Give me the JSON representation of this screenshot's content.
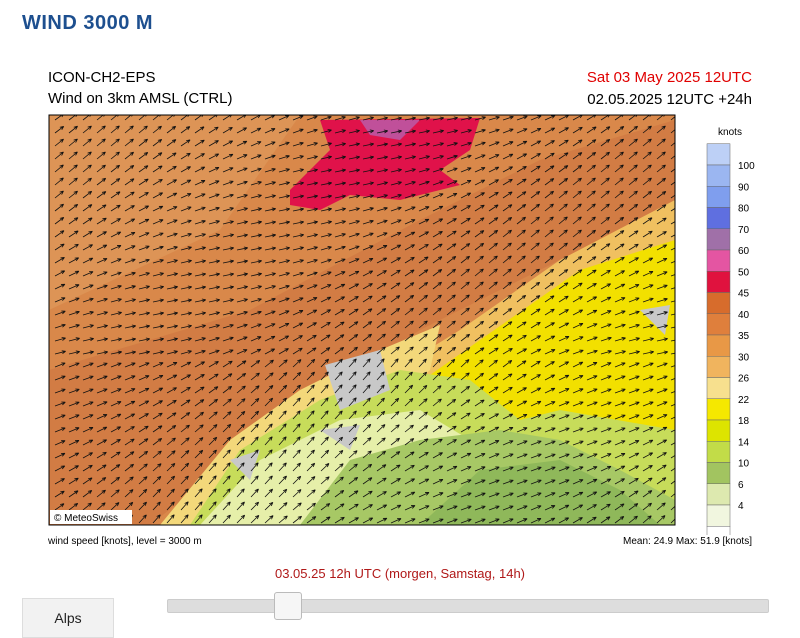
{
  "header": {
    "title": "WIND 3000 M"
  },
  "map": {
    "model": "ICON-CH2-EPS",
    "field": "Wind on 3km AMSL (CTRL)",
    "valid_time": "Sat 03 May 2025 12UTC",
    "run": "02.05.2025 12UTC +24h",
    "copyright": "© MeteoSwiss",
    "footer_left": "wind speed [knots], level = 3000 m",
    "footer_right": "Mean:  24.9 Max:  51.9 [knots]"
  },
  "legend": {
    "unit": "knots",
    "levels": [
      "100",
      "90",
      "80",
      "70",
      "60",
      "50",
      "45",
      "40",
      "35",
      "30",
      "26",
      "22",
      "18",
      "14",
      "10",
      "6",
      "4"
    ]
  },
  "timeline": {
    "label": "03.05.25 12h UTC (morgen, Samstag, 14h)"
  },
  "region_button": {
    "label": "Alps"
  }
}
